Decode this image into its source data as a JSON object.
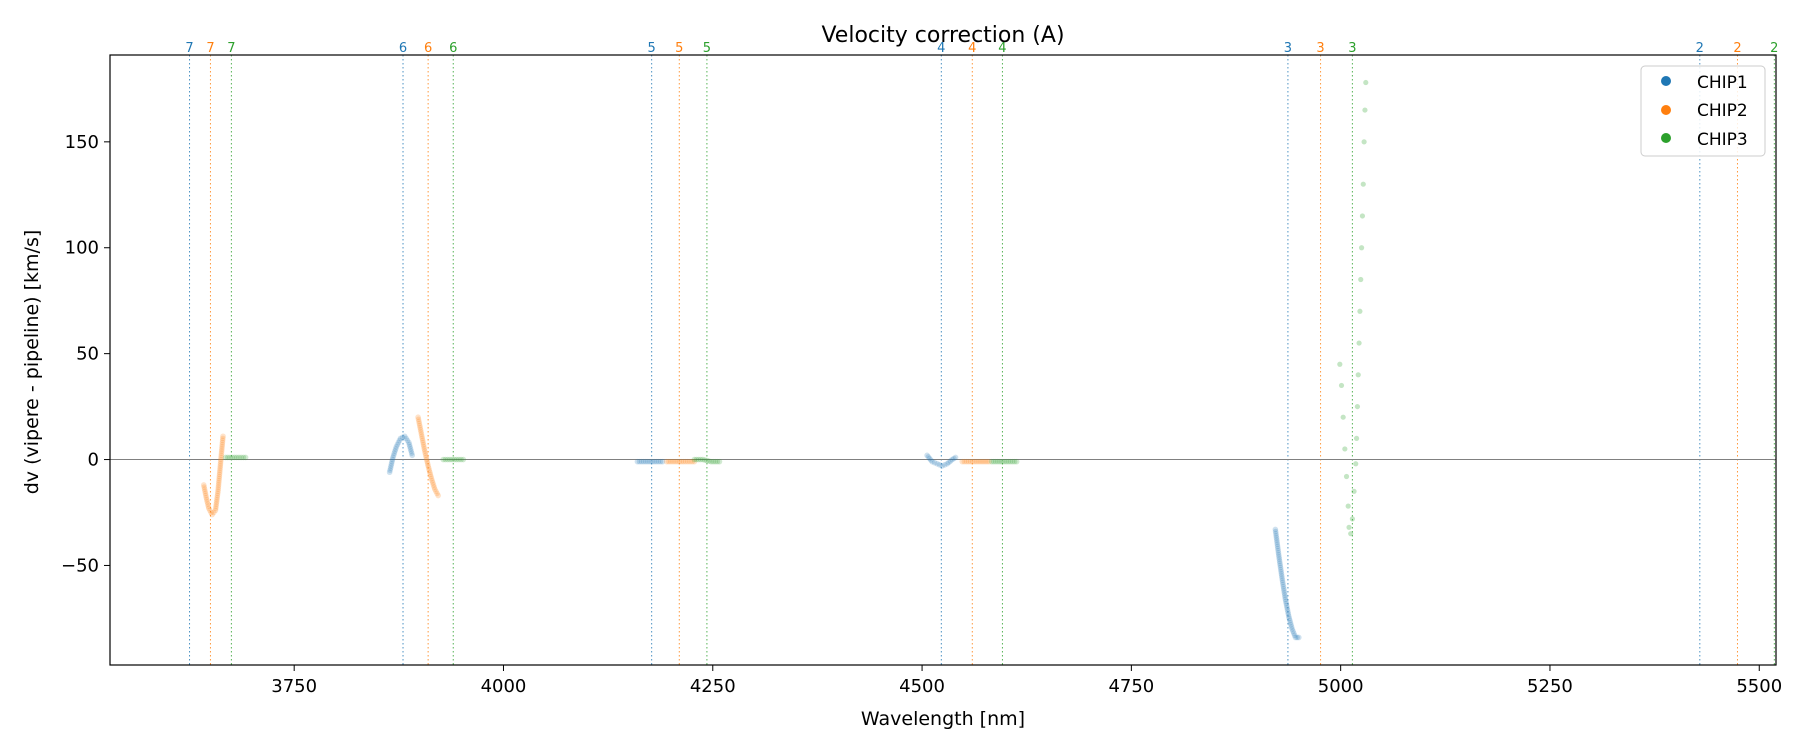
{
  "chart_data": {
    "type": "scatter",
    "title": "Velocity correction (A)",
    "xlabel": "Wavelength [nm]",
    "ylabel": "dv (vipere - pipeline) [km/s]",
    "xlim": [
      3530,
      5520
    ],
    "ylim": [
      -97,
      191
    ],
    "xticks": [
      3750,
      4000,
      4250,
      4500,
      4750,
      5000,
      5250,
      5500
    ],
    "yticks": [
      -50,
      0,
      50,
      100,
      150
    ],
    "grid": false,
    "legend_position": "top-right",
    "zero_line": 0,
    "series": [
      {
        "name": "CHIP1",
        "color": "#1f77b4"
      },
      {
        "name": "CHIP2",
        "color": "#ff7f0e"
      },
      {
        "name": "CHIP3",
        "color": "#2ca02c"
      }
    ],
    "order_markers": [
      {
        "label": "7",
        "chip": 0,
        "x": 3625
      },
      {
        "label": "7",
        "chip": 1,
        "x": 3650
      },
      {
        "label": "7",
        "chip": 2,
        "x": 3675
      },
      {
        "label": "6",
        "chip": 0,
        "x": 3880
      },
      {
        "label": "6",
        "chip": 1,
        "x": 3910
      },
      {
        "label": "6",
        "chip": 2,
        "x": 3940
      },
      {
        "label": "5",
        "chip": 0,
        "x": 4177
      },
      {
        "label": "5",
        "chip": 1,
        "x": 4210
      },
      {
        "label": "5",
        "chip": 2,
        "x": 4243
      },
      {
        "label": "4",
        "chip": 0,
        "x": 4523
      },
      {
        "label": "4",
        "chip": 1,
        "x": 4560
      },
      {
        "label": "4",
        "chip": 2,
        "x": 4596
      },
      {
        "label": "3",
        "chip": 0,
        "x": 4937
      },
      {
        "label": "3",
        "chip": 1,
        "x": 4976
      },
      {
        "label": "3",
        "chip": 2,
        "x": 5014
      },
      {
        "label": "2",
        "chip": 0,
        "x": 5429
      },
      {
        "label": "2",
        "chip": 1,
        "x": 5474
      },
      {
        "label": "2",
        "chip": 2,
        "x": 5518
      }
    ],
    "segments": [
      {
        "chip": 1,
        "points": [
          [
            3642,
            -12
          ],
          [
            3645,
            -18
          ],
          [
            3648,
            -23
          ],
          [
            3652,
            -26
          ],
          [
            3656,
            -24
          ],
          [
            3659,
            -15
          ],
          [
            3662,
            -2
          ],
          [
            3665,
            11
          ]
        ]
      },
      {
        "chip": 2,
        "points": [
          [
            3668,
            1
          ],
          [
            3676,
            1
          ],
          [
            3684,
            1
          ],
          [
            3692,
            1
          ]
        ]
      },
      {
        "chip": 0,
        "points": [
          [
            3864,
            -6
          ],
          [
            3868,
            1
          ],
          [
            3872,
            6
          ],
          [
            3877,
            10
          ],
          [
            3882,
            11
          ],
          [
            3887,
            8
          ],
          [
            3891,
            2
          ]
        ]
      },
      {
        "chip": 1,
        "points": [
          [
            3898,
            20
          ],
          [
            3902,
            12
          ],
          [
            3906,
            4
          ],
          [
            3910,
            -3
          ],
          [
            3914,
            -9
          ],
          [
            3918,
            -14
          ],
          [
            3922,
            -17
          ]
        ]
      },
      {
        "chip": 2,
        "points": [
          [
            3928,
            0
          ],
          [
            3936,
            0
          ],
          [
            3944,
            0
          ],
          [
            3952,
            0
          ]
        ]
      },
      {
        "chip": 0,
        "points": [
          [
            4160,
            -1
          ],
          [
            4170,
            -1
          ],
          [
            4180,
            -1
          ],
          [
            4190,
            -1
          ]
        ]
      },
      {
        "chip": 1,
        "points": [
          [
            4195,
            -1
          ],
          [
            4205,
            -1
          ],
          [
            4215,
            -1
          ],
          [
            4228,
            -1
          ]
        ]
      },
      {
        "chip": 2,
        "points": [
          [
            4228,
            0
          ],
          [
            4238,
            0
          ],
          [
            4248,
            -1
          ],
          [
            4258,
            -1
          ]
        ]
      },
      {
        "chip": 0,
        "points": [
          [
            4506,
            2
          ],
          [
            4512,
            -1
          ],
          [
            4518,
            -2
          ],
          [
            4524,
            -3
          ],
          [
            4530,
            -2
          ],
          [
            4536,
            0
          ],
          [
            4540,
            1
          ]
        ]
      },
      {
        "chip": 1,
        "points": [
          [
            4548,
            -1
          ],
          [
            4558,
            -1
          ],
          [
            4568,
            -1
          ],
          [
            4580,
            -1
          ]
        ]
      },
      {
        "chip": 2,
        "points": [
          [
            4583,
            -1
          ],
          [
            4593,
            -1
          ],
          [
            4603,
            -1
          ],
          [
            4613,
            -1
          ]
        ]
      },
      {
        "chip": 0,
        "points": [
          [
            4922,
            -33
          ],
          [
            4926,
            -45
          ],
          [
            4930,
            -56
          ],
          [
            4934,
            -66
          ],
          [
            4938,
            -74
          ],
          [
            4942,
            -80
          ],
          [
            4946,
            -84
          ],
          [
            4950,
            -84
          ]
        ]
      },
      {
        "chip": 2,
        "points": [
          [
            4999,
            45
          ],
          [
            5001,
            35
          ],
          [
            5003,
            20
          ],
          [
            5005,
            5
          ],
          [
            5007,
            -8
          ],
          [
            5009,
            -22
          ],
          [
            5010,
            -32
          ],
          [
            5012,
            -35
          ],
          [
            5014,
            -28
          ],
          [
            5016,
            -15
          ],
          [
            5018,
            -2
          ],
          [
            5019,
            10
          ],
          [
            5020,
            25
          ],
          [
            5021,
            40
          ],
          [
            5022,
            55
          ],
          [
            5023,
            70
          ],
          [
            5024,
            85
          ],
          [
            5025,
            100
          ],
          [
            5026,
            115
          ],
          [
            5027,
            130
          ],
          [
            5028,
            150
          ],
          [
            5029,
            165
          ],
          [
            5030,
            178
          ]
        ]
      }
    ]
  }
}
